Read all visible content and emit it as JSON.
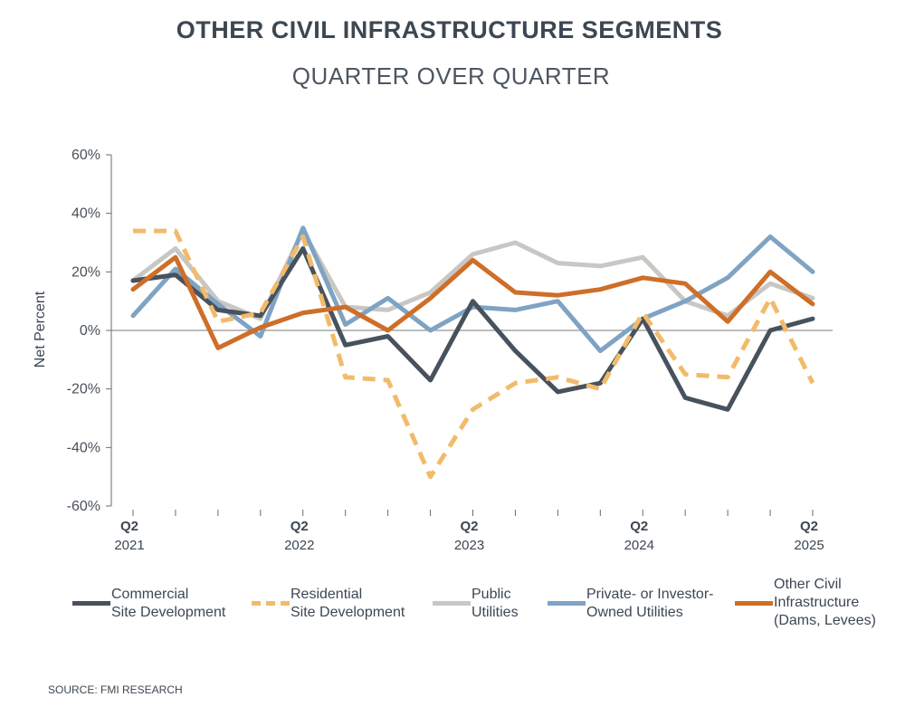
{
  "chart_data": {
    "type": "line",
    "title": "OTHER CIVIL INFRASTRUCTURE SEGMENTS",
    "subtitle": "QUARTER OVER QUARTER",
    "ylabel": "Net Percent",
    "xlabel": "",
    "ylim": [
      -60,
      60
    ],
    "yticks": [
      60,
      40,
      20,
      0,
      -20,
      -40,
      -60
    ],
    "ytick_labels": [
      "60%",
      "40%",
      "20%",
      "0%",
      "-20%",
      "-40%",
      "-60%"
    ],
    "x_labels": [
      {
        "index": 0,
        "q": "Q2",
        "year": "2021"
      },
      {
        "index": 4,
        "q": "Q2",
        "year": "2022"
      },
      {
        "index": 8,
        "q": "Q2",
        "year": "2023"
      },
      {
        "index": 12,
        "q": "Q2",
        "year": "2024"
      },
      {
        "index": 16,
        "q": "Q2",
        "year": "2025"
      }
    ],
    "num_points": 17,
    "series": [
      {
        "name": "Commercial Site Development",
        "color": "#47525d",
        "dash": "solid",
        "values": [
          17,
          19,
          7,
          5,
          28,
          -5,
          -2,
          -17,
          10,
          -7,
          -21,
          -18,
          4,
          -23,
          -27,
          0,
          4
        ]
      },
      {
        "name": "Residential Site Development",
        "color": "#f2bb6a",
        "dash": "dashed",
        "values": [
          34,
          34,
          3,
          6,
          32,
          -16,
          -17,
          -50,
          -27,
          -18,
          -16,
          -20,
          6,
          -15,
          -16,
          11,
          -18
        ]
      },
      {
        "name": "Public Utilities",
        "color": "#c8c7c3",
        "dash": "solid",
        "values": [
          17,
          28,
          10,
          4,
          34,
          8,
          7,
          13,
          26,
          30,
          23,
          22,
          25,
          10,
          5,
          16,
          11
        ]
      },
      {
        "name": "Private- or Investor-Owned Utilities",
        "color": "#7fa3c3",
        "dash": "solid",
        "values": [
          5,
          21,
          9,
          -2,
          35,
          2,
          11,
          0,
          8,
          7,
          10,
          -7,
          4,
          10,
          18,
          32,
          20
        ]
      },
      {
        "name": "Other Civil Infrastructure (Dams, Levees)",
        "color": "#ce6e29",
        "dash": "solid",
        "values": [
          14,
          25,
          -6,
          1,
          6,
          8,
          0,
          11,
          24,
          13,
          12,
          14,
          18,
          16,
          3,
          20,
          9
        ]
      }
    ]
  },
  "legend": [
    {
      "line1": "Commercial",
      "line2": "Site Development",
      "line3": ""
    },
    {
      "line1": "Residential",
      "line2": "Site Development",
      "line3": ""
    },
    {
      "line1": "Public",
      "line2": "Utilities",
      "line3": ""
    },
    {
      "line1": "Private- or Investor-",
      "line2": "Owned Utilities",
      "line3": ""
    },
    {
      "line1": "Other Civil",
      "line2": "Infrastructure",
      "line3": "(Dams, Levees)"
    }
  ],
  "source": "SOURCE: FMI RESEARCH"
}
